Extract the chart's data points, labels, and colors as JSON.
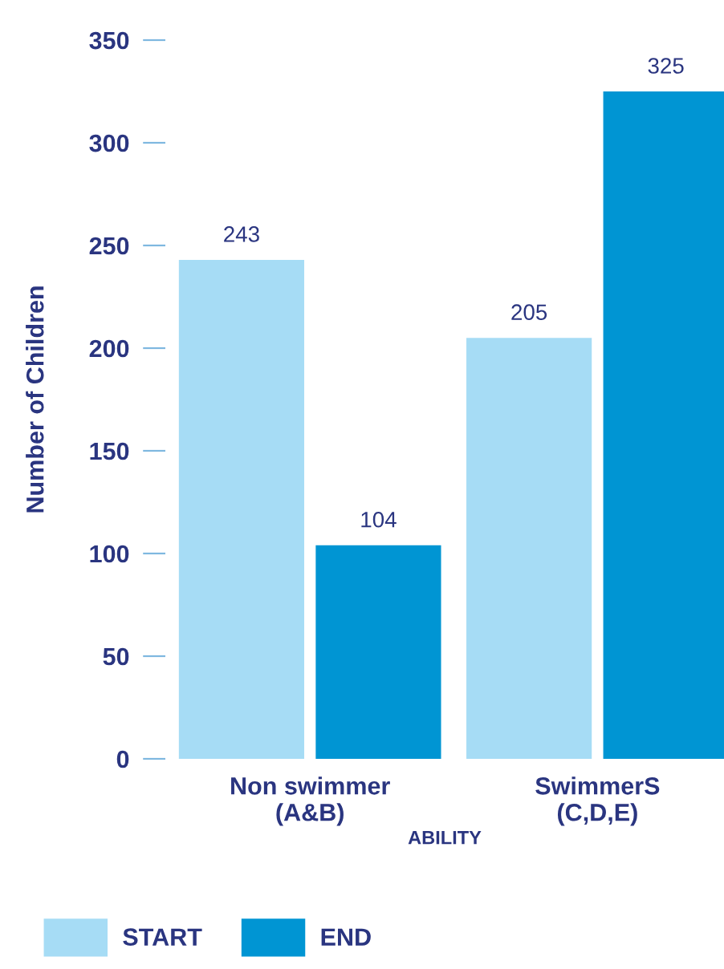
{
  "chart_data": {
    "type": "bar",
    "xlabel": "ABILITY",
    "ylabel": "Number of Children",
    "categories": [
      "Non swimmer\n(A&B)",
      "SwimmerS\n(C,D,E)"
    ],
    "series": [
      {
        "name": "START",
        "color": "#a6dcf5",
        "values": [
          243,
          205
        ]
      },
      {
        "name": "END",
        "color": "#0095d3",
        "values": [
          104,
          325
        ]
      }
    ],
    "ylim": [
      0,
      350
    ],
    "yticks": [
      0,
      50,
      100,
      150,
      200,
      250,
      300,
      350
    ],
    "data_labels": true,
    "grid": false,
    "legend": "bottom"
  }
}
